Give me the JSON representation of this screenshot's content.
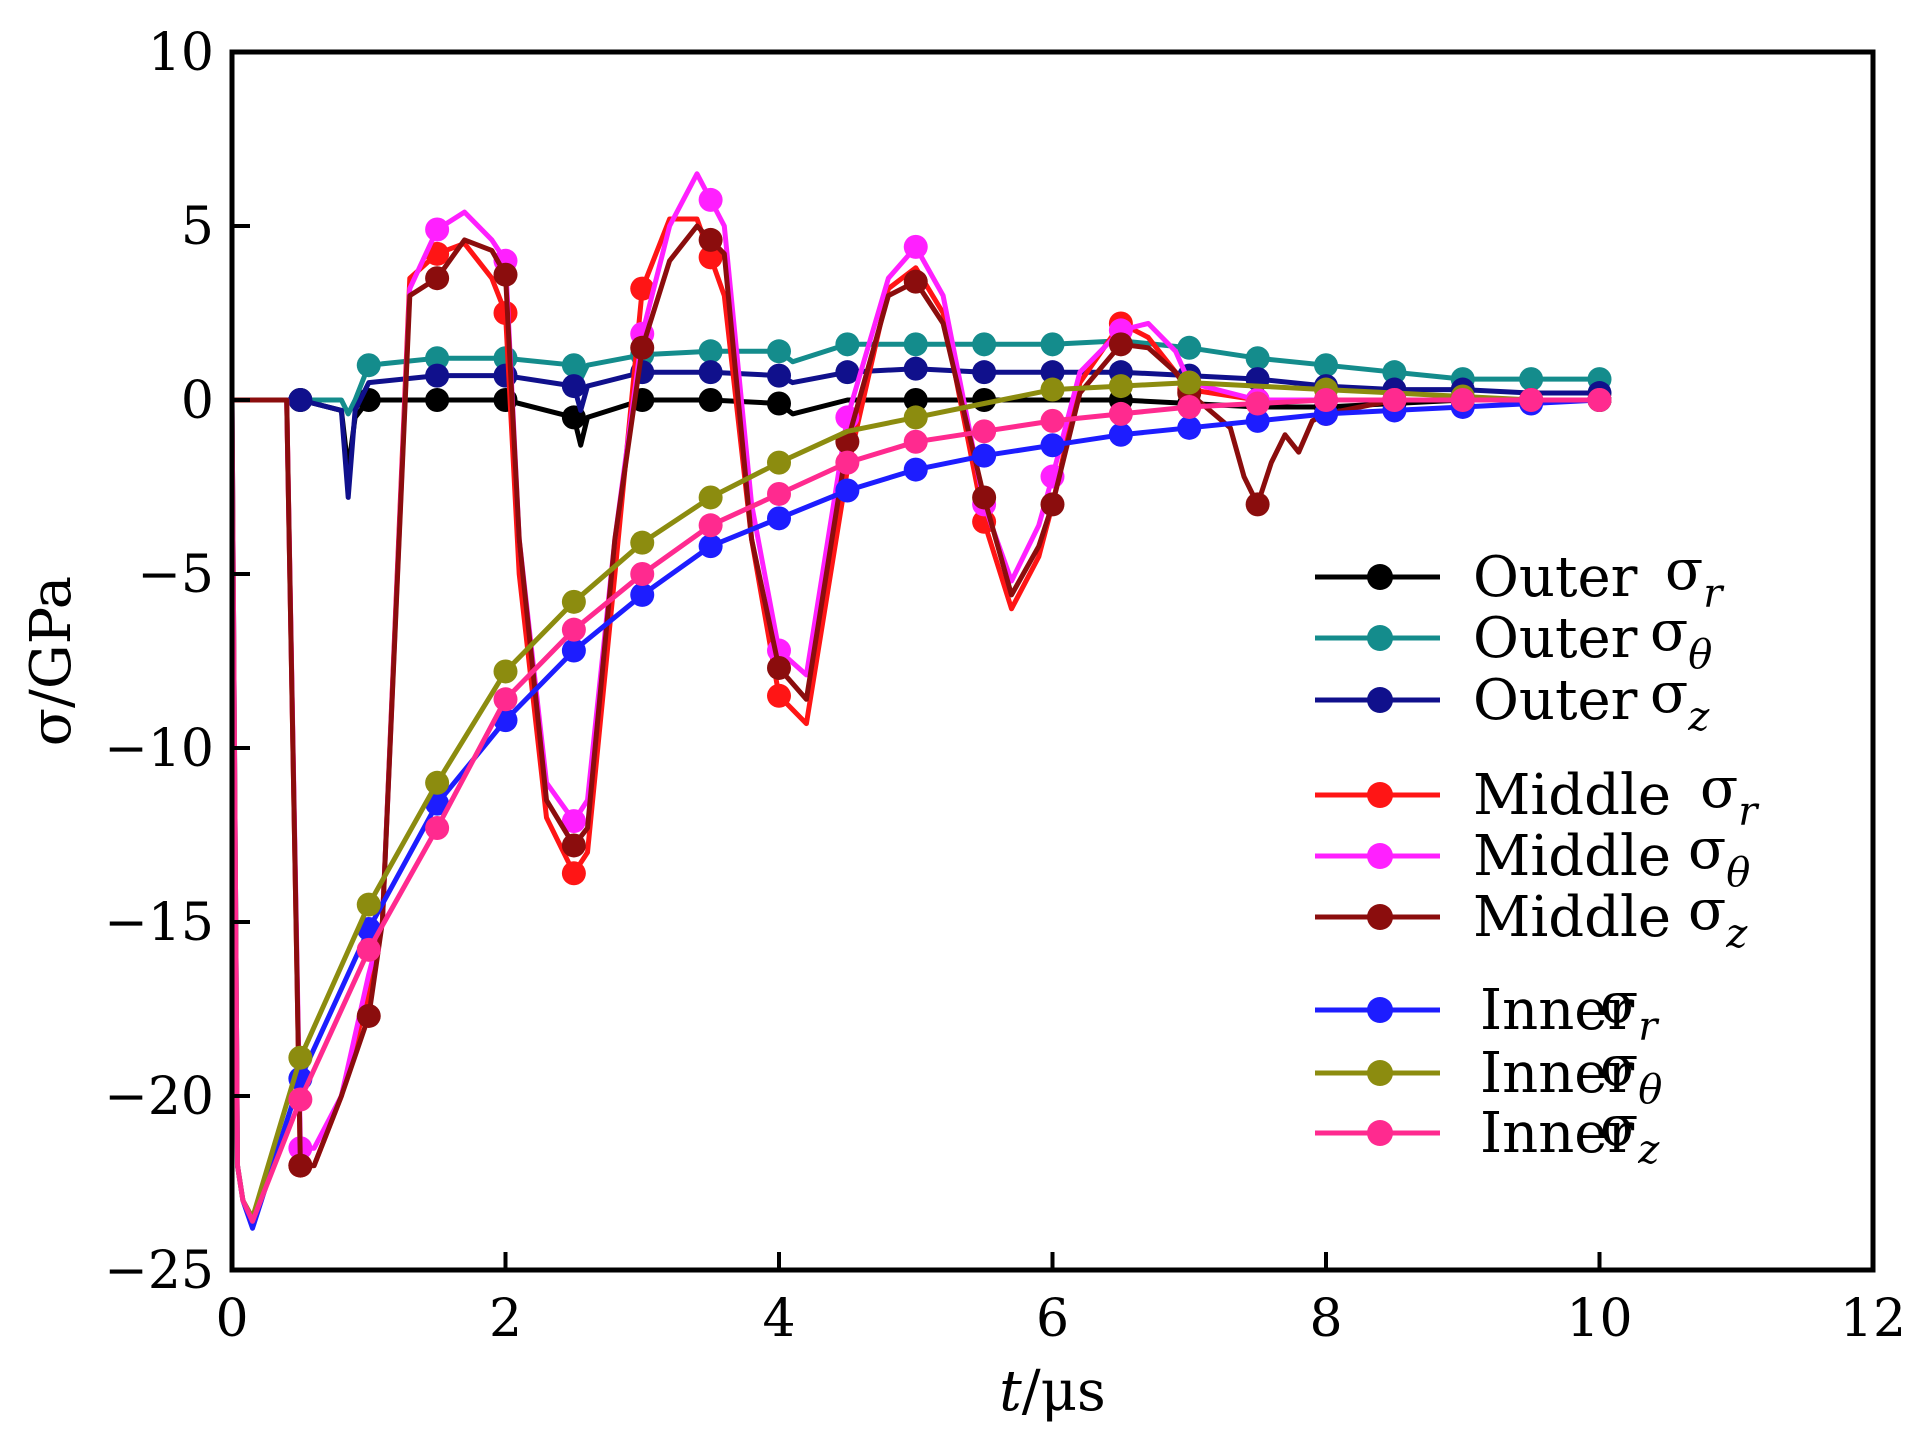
{
  "chart_data": {
    "type": "line",
    "xlabel_var": "t",
    "xlabel_unit": "/μs",
    "ylabel": "σ/GPa",
    "xlim": [
      0,
      12
    ],
    "ylim": [
      -25,
      10
    ],
    "xticks": [
      0,
      2,
      4,
      6,
      8,
      10,
      12
    ],
    "yticks": [
      -25,
      -20,
      -15,
      -10,
      -5,
      0,
      5,
      10
    ],
    "x_tick_labels": [
      "0",
      "2",
      "4",
      "6",
      "8",
      "10",
      "12"
    ],
    "y_tick_labels": [
      "−25",
      "−20",
      "−15",
      "−10",
      "−5",
      "0",
      "5",
      "10"
    ],
    "grid": false,
    "legend_position": "right",
    "series": [
      {
        "name": "Outer",
        "symbol": "σ",
        "sub": "r",
        "color": "#000000",
        "x": [
          0,
          0.5,
          0.8,
          0.85,
          0.9,
          1.0,
          1.5,
          2.0,
          2.5,
          2.55,
          2.6,
          3.0,
          3.5,
          4.0,
          4.1,
          4.5,
          5.0,
          5.5,
          6.0,
          6.5,
          7.0,
          7.5,
          8.0,
          8.5,
          9.0,
          9.5,
          10.0
        ],
        "y": [
          0,
          0,
          -0.3,
          -2.0,
          -0.5,
          0,
          0,
          0,
          -0.5,
          -1.3,
          -0.5,
          0,
          0,
          -0.1,
          -0.4,
          0,
          0,
          0,
          0,
          0,
          -0.1,
          -0.2,
          -0.2,
          -0.1,
          0,
          0,
          0
        ],
        "markers_x": [
          0.5,
          1.0,
          1.5,
          2.0,
          2.5,
          3.0,
          3.5,
          4.0,
          5.0,
          5.5,
          6.5,
          7.0,
          8.0,
          8.5,
          9.0,
          9.5,
          10.0
        ]
      },
      {
        "name": "Outer",
        "symbol": "σ",
        "sub": "θ",
        "color": "#148c8c",
        "x": [
          0,
          0.5,
          0.8,
          0.85,
          0.9,
          1.0,
          1.5,
          2.0,
          2.5,
          2.55,
          2.6,
          3.0,
          3.5,
          4.0,
          4.1,
          4.5,
          5.0,
          5.5,
          6.0,
          6.5,
          7.0,
          7.5,
          8.0,
          8.5,
          9.0,
          9.5,
          10.0
        ],
        "y": [
          0,
          0,
          0,
          -0.4,
          0,
          1.0,
          1.2,
          1.2,
          1.0,
          0.6,
          1.0,
          1.3,
          1.4,
          1.4,
          1.1,
          1.6,
          1.6,
          1.6,
          1.6,
          1.7,
          1.5,
          1.2,
          1.0,
          0.8,
          0.6,
          0.6,
          0.6
        ],
        "markers_x": [
          1.0,
          1.5,
          2.0,
          2.5,
          3.0,
          3.5,
          4.0,
          4.5,
          5.0,
          5.5,
          6.0,
          7.0,
          7.5,
          8.0,
          8.5,
          9.0,
          9.5,
          10.0
        ]
      },
      {
        "name": "Outer",
        "symbol": "σ",
        "sub": "z",
        "color": "#10108c",
        "x": [
          0,
          0.5,
          0.8,
          0.85,
          0.9,
          1.0,
          1.5,
          2.0,
          2.5,
          2.55,
          2.6,
          3.0,
          3.5,
          4.0,
          4.1,
          4.5,
          5.0,
          5.5,
          6.0,
          6.5,
          7.0,
          7.5,
          8.0,
          8.5,
          9.0,
          9.5,
          10.0
        ],
        "y": [
          0,
          0,
          -0.3,
          -2.8,
          -0.3,
          0.5,
          0.7,
          0.7,
          0.4,
          -0.3,
          0.4,
          0.8,
          0.8,
          0.7,
          0.5,
          0.8,
          0.9,
          0.8,
          0.8,
          0.8,
          0.7,
          0.6,
          0.4,
          0.3,
          0.3,
          0.2,
          0.2
        ],
        "markers_x": [
          0.5,
          1.5,
          2.0,
          2.5,
          3.0,
          3.5,
          4.0,
          4.5,
          5.0,
          5.5,
          6.0,
          6.5,
          7.0,
          7.5,
          8.0,
          8.5,
          9.0,
          10.0
        ]
      },
      {
        "name": "Middle",
        "symbol": "σ",
        "sub": "r",
        "color": "#ff1515",
        "x": [
          0,
          0.4,
          0.5,
          0.55,
          0.6,
          0.8,
          1.0,
          1.1,
          1.3,
          1.5,
          1.7,
          1.9,
          2.0,
          2.1,
          2.3,
          2.5,
          2.6,
          2.8,
          3.0,
          3.2,
          3.4,
          3.6,
          3.8,
          4.0,
          4.2,
          4.5,
          4.8,
          5.0,
          5.2,
          5.5,
          5.7,
          5.9,
          6.0,
          6.2,
          6.5,
          6.7,
          6.9,
          7.0,
          7.5,
          8.0,
          8.5,
          9.0,
          9.5,
          10.0
        ],
        "y": [
          0,
          0,
          -22,
          -22,
          -22,
          -20,
          -17,
          -15,
          3.5,
          4.2,
          4.5,
          3.5,
          2.5,
          -5,
          -12,
          -13.6,
          -13,
          -5,
          3.2,
          5.2,
          5.2,
          3.0,
          -4,
          -8.5,
          -9.3,
          -2,
          3.2,
          3.8,
          2.5,
          -3.5,
          -6.0,
          -4.5,
          -3,
          0.5,
          2.2,
          1.8,
          0.8,
          0.3,
          0,
          0,
          0,
          0,
          0,
          0
        ],
        "markers_x": [
          0.5,
          1.5,
          2.0,
          2.5,
          3.0,
          3.5,
          4.0,
          5.5,
          6.5,
          7.0,
          7.5,
          8.0,
          8.5,
          9.0,
          9.5,
          10.0
        ]
      },
      {
        "name": "Middle",
        "symbol": "σ",
        "sub": "θ",
        "color": "#ff20ff",
        "x": [
          0,
          0.4,
          0.5,
          0.55,
          0.6,
          0.8,
          1.0,
          1.1,
          1.3,
          1.5,
          1.7,
          1.9,
          2.0,
          2.1,
          2.3,
          2.5,
          2.6,
          2.8,
          3.0,
          3.2,
          3.4,
          3.6,
          3.8,
          4.0,
          4.2,
          4.5,
          4.8,
          5.0,
          5.2,
          5.5,
          5.7,
          5.9,
          6.0,
          6.2,
          6.5,
          6.7,
          6.9,
          7.0,
          7.5,
          8.0,
          8.5,
          9.0,
          9.5,
          10.0
        ],
        "y": [
          0,
          0,
          -21.5,
          -21.5,
          -21.5,
          -20,
          -16.5,
          -15,
          3.2,
          4.9,
          5.4,
          4.6,
          4.0,
          -4,
          -11,
          -12.1,
          -11.5,
          -4,
          1.9,
          5.0,
          6.5,
          5.0,
          -3,
          -7.2,
          -7.9,
          -0.5,
          3.5,
          4.4,
          3.0,
          -3.0,
          -5.2,
          -3.6,
          -2.2,
          0.8,
          2.0,
          2.2,
          1.4,
          0.5,
          0,
          0,
          0,
          0,
          0,
          0
        ],
        "markers_x": [
          0.5,
          1.5,
          2.0,
          2.5,
          3.0,
          3.5,
          4.0,
          4.5,
          5.0,
          5.5,
          6.0,
          6.5,
          7.0,
          7.5,
          8.0,
          8.5,
          9.0,
          9.5,
          10.0
        ]
      },
      {
        "name": "Middle",
        "symbol": "σ",
        "sub": "z",
        "color": "#8b0d0d",
        "x": [
          0,
          0.4,
          0.5,
          0.55,
          0.6,
          0.8,
          1.0,
          1.1,
          1.3,
          1.5,
          1.7,
          1.9,
          2.0,
          2.1,
          2.3,
          2.5,
          2.6,
          2.8,
          3.0,
          3.2,
          3.4,
          3.6,
          3.8,
          4.0,
          4.2,
          4.5,
          4.8,
          5.0,
          5.2,
          5.5,
          5.7,
          5.9,
          6.0,
          6.2,
          6.5,
          6.7,
          6.9,
          7.0,
          7.3,
          7.4,
          7.5,
          7.6,
          7.7,
          7.8,
          7.9,
          8.0,
          8.5,
          9.0,
          9.5,
          10.0
        ],
        "y": [
          0,
          0,
          -22,
          -22,
          -22,
          -20,
          -17.7,
          -15,
          3.0,
          3.5,
          4.6,
          4.3,
          3.6,
          -4,
          -11.5,
          -12.8,
          -12.3,
          -4,
          1.5,
          4.0,
          5.0,
          4.2,
          -4,
          -7.7,
          -8.6,
          -1.2,
          3.0,
          3.4,
          2.2,
          -2.8,
          -5.6,
          -4.2,
          -3,
          0.2,
          1.6,
          1.5,
          0.8,
          0.2,
          -0.8,
          -2.2,
          -3.0,
          -1.8,
          -1.0,
          -1.5,
          -0.6,
          -0.4,
          0,
          0,
          0,
          0
        ],
        "markers_x": [
          0.5,
          1.0,
          1.5,
          2.0,
          2.5,
          3.0,
          3.5,
          4.0,
          4.5,
          5.0,
          5.5,
          6.0,
          6.5,
          7.0,
          7.5,
          8.0,
          8.5,
          9.0,
          9.5,
          10.0
        ]
      },
      {
        "name": "Inner",
        "symbol": "σ",
        "sub": "r",
        "color": "#1d1dff",
        "x": [
          0,
          0.04,
          0.08,
          0.15,
          0.5,
          1.0,
          1.5,
          2.0,
          2.5,
          3.0,
          3.5,
          4.0,
          4.5,
          5.0,
          5.5,
          6.0,
          6.5,
          7.0,
          7.5,
          8.0,
          8.5,
          9.0,
          9.5,
          10.0
        ],
        "y": [
          0,
          -22,
          -23,
          -23.8,
          -19.5,
          -15.2,
          -11.6,
          -9.2,
          -7.2,
          -5.6,
          -4.2,
          -3.4,
          -2.6,
          -2.0,
          -1.6,
          -1.3,
          -1.0,
          -0.8,
          -0.6,
          -0.4,
          -0.3,
          -0.2,
          -0.1,
          0
        ],
        "markers_x": [
          0.5,
          1.0,
          1.5,
          2.0,
          2.5,
          3.0,
          3.5,
          4.0,
          4.5,
          5.0,
          5.5,
          6.0,
          6.5,
          7.0,
          7.5,
          8.0,
          8.5,
          9.0,
          9.5,
          10.0
        ]
      },
      {
        "name": "Inner",
        "symbol": "σ",
        "sub": "θ",
        "color": "#8c8c0f",
        "x": [
          0,
          0.04,
          0.08,
          0.15,
          0.5,
          1.0,
          1.5,
          2.0,
          2.5,
          3.0,
          3.5,
          4.0,
          4.5,
          5.0,
          5.5,
          6.0,
          6.5,
          7.0,
          7.5,
          8.0,
          8.5,
          9.0,
          9.5,
          10.0
        ],
        "y": [
          0,
          -22,
          -23,
          -23.5,
          -18.9,
          -14.5,
          -11.0,
          -7.8,
          -5.8,
          -4.1,
          -2.8,
          -1.8,
          -0.9,
          -0.5,
          -0.1,
          0.3,
          0.4,
          0.5,
          0.4,
          0.3,
          0.2,
          0.1,
          0,
          0
        ],
        "markers_x": [
          0.5,
          1.0,
          1.5,
          2.0,
          2.5,
          3.0,
          3.5,
          4.0,
          5.0,
          6.0,
          6.5,
          7.0,
          8.0,
          9.0,
          10.0
        ]
      },
      {
        "name": "Inner",
        "symbol": "σ",
        "sub": "z",
        "color": "#ff2a8f",
        "x": [
          0,
          0.04,
          0.08,
          0.15,
          0.5,
          1.0,
          1.5,
          2.0,
          2.5,
          3.0,
          3.5,
          4.0,
          4.5,
          5.0,
          5.5,
          6.0,
          6.5,
          7.0,
          7.5,
          8.0,
          8.5,
          9.0,
          9.5,
          10.0
        ],
        "y": [
          0,
          -22,
          -23,
          -23.6,
          -20.1,
          -15.8,
          -12.3,
          -8.6,
          -6.6,
          -5.0,
          -3.6,
          -2.7,
          -1.8,
          -1.2,
          -0.9,
          -0.6,
          -0.4,
          -0.2,
          -0.1,
          0,
          0,
          0,
          0,
          0
        ],
        "markers_x": [
          0.5,
          1.0,
          1.5,
          2.0,
          2.5,
          3.0,
          3.5,
          4.0,
          4.5,
          5.0,
          5.5,
          6.0,
          6.5,
          7.0,
          7.5,
          8.0,
          8.5,
          9.0,
          9.5,
          10.0
        ]
      }
    ]
  }
}
